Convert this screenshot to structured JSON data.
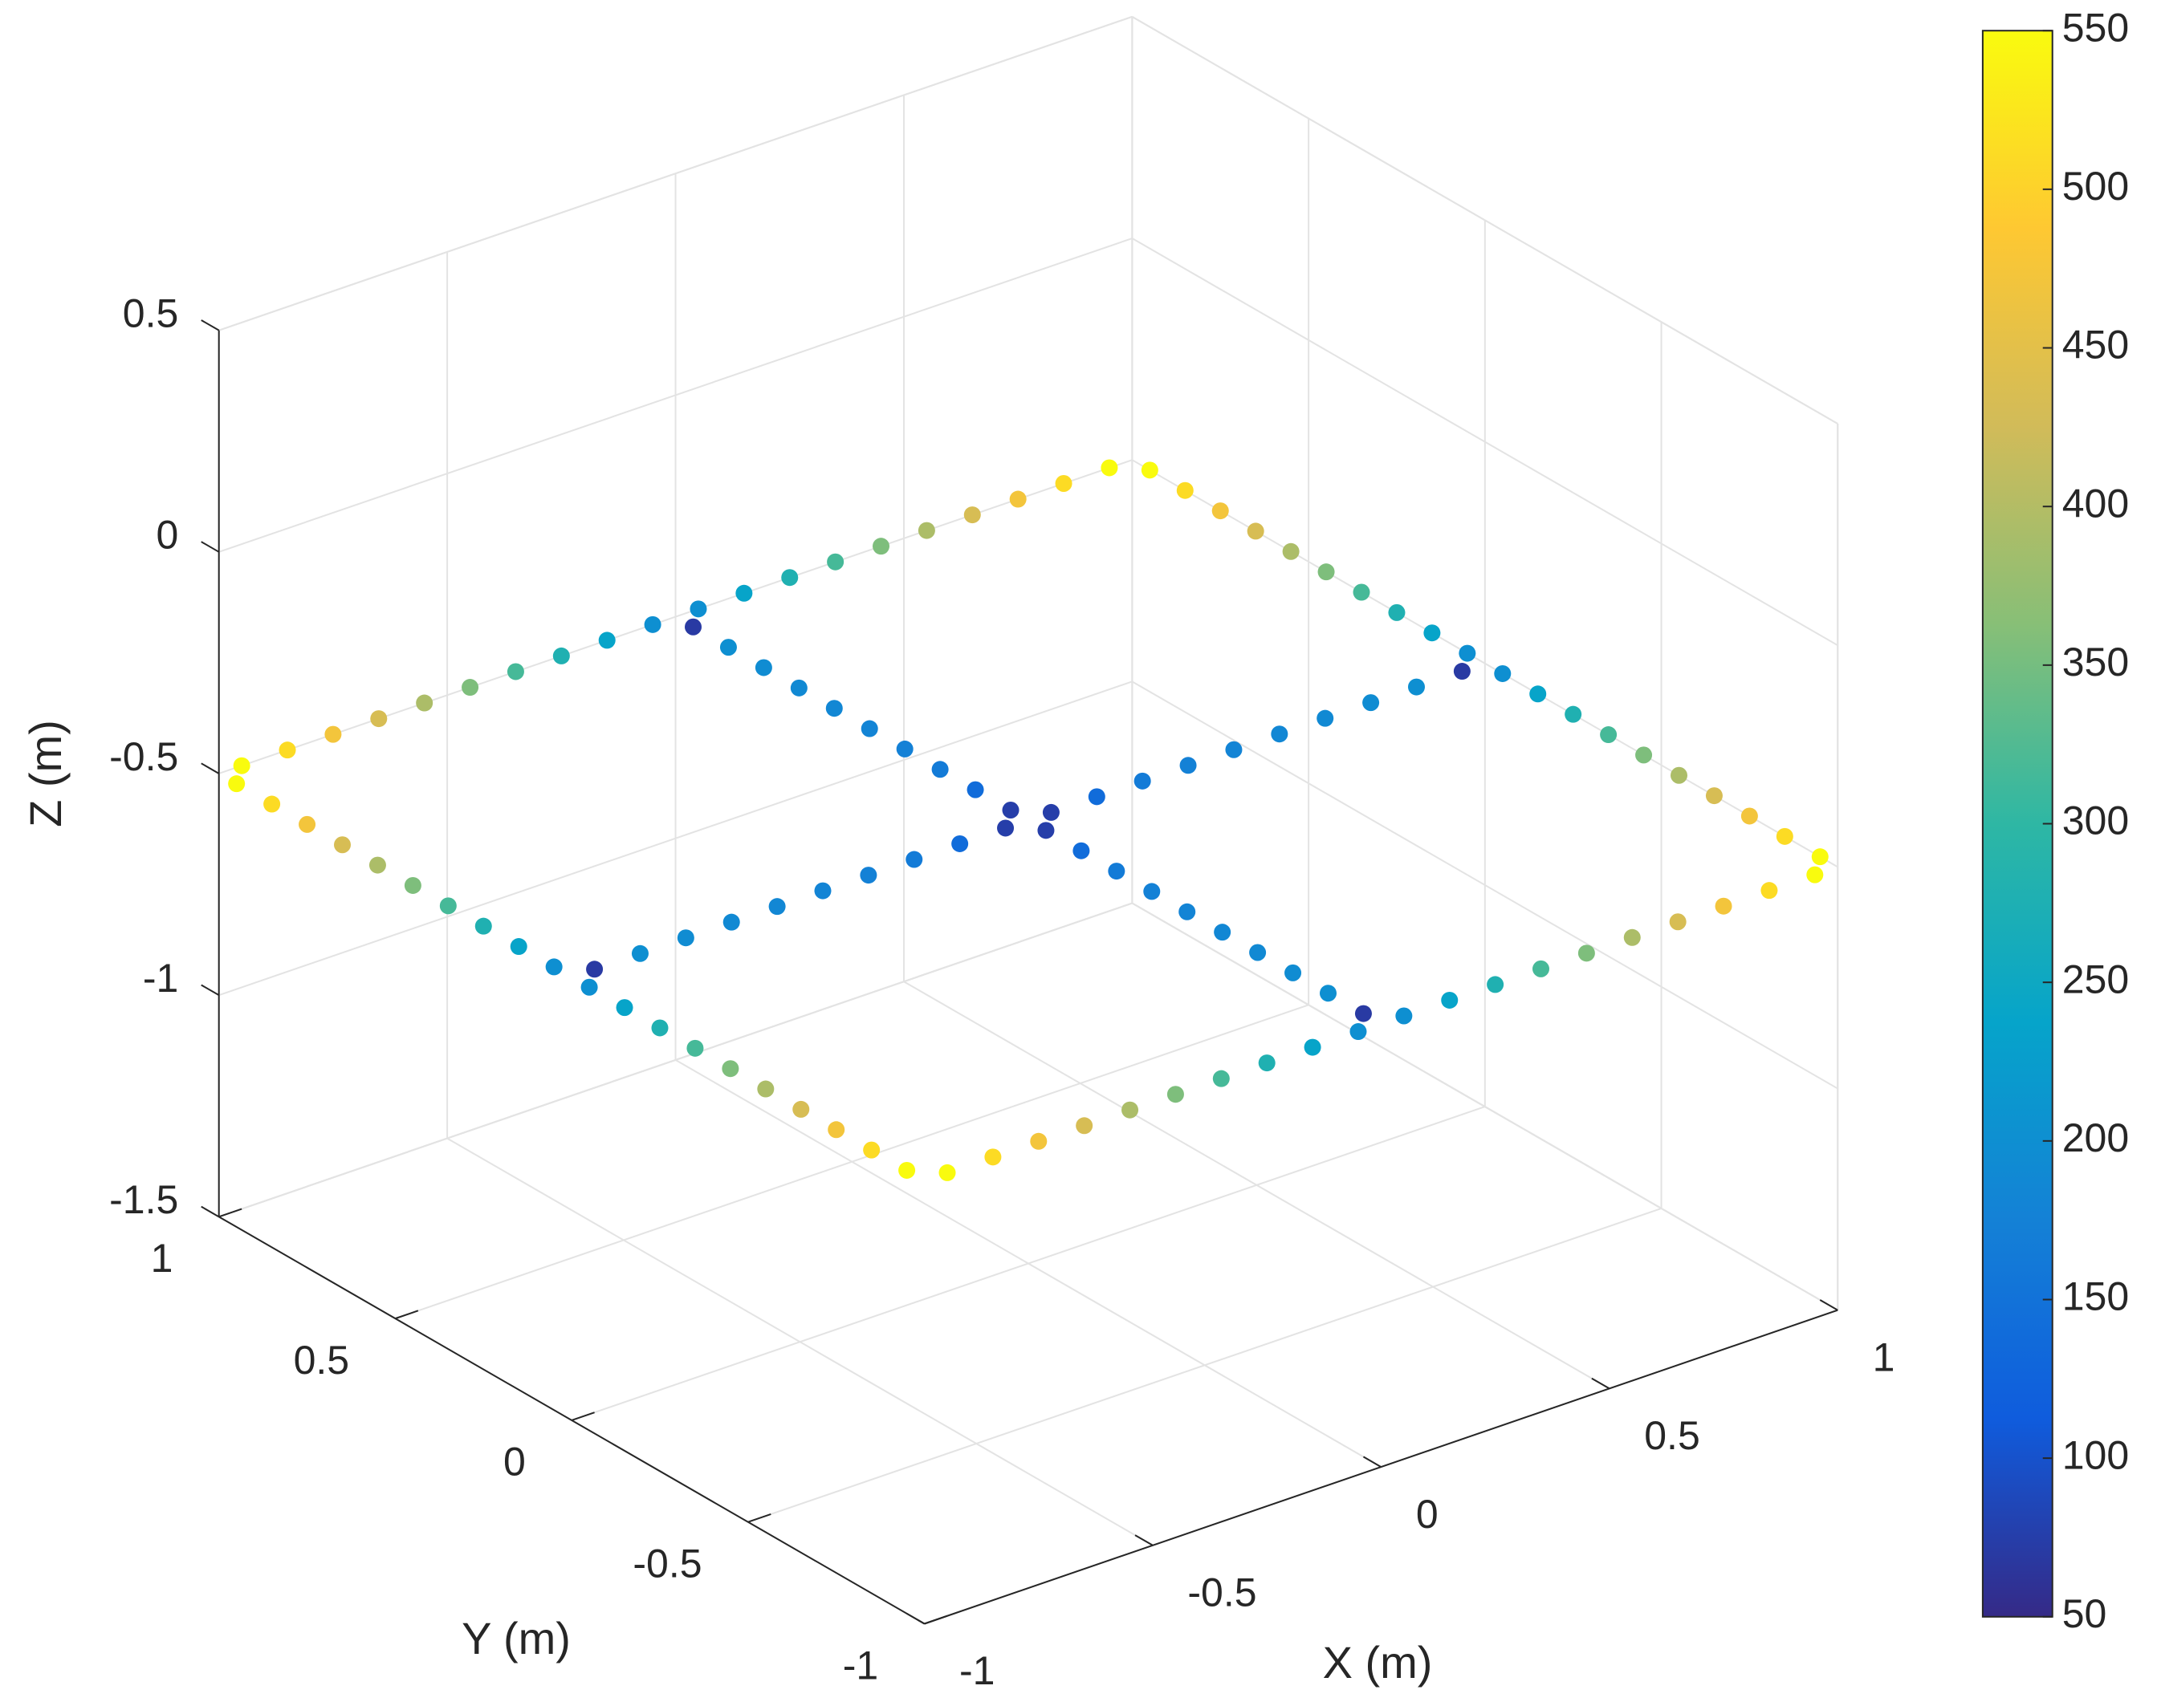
{
  "chart_data": {
    "type": "scatter3d",
    "xlabel": "X (m)",
    "ylabel": "Y (m)",
    "zlabel": "Z (m)",
    "xlim": [
      -1,
      1
    ],
    "ylim": [
      -1,
      1
    ],
    "zlim": [
      -1.5,
      0.5
    ],
    "xticks": [
      -1,
      -0.5,
      0,
      0.5,
      1
    ],
    "yticks": [
      -1,
      -0.5,
      0,
      0.5,
      1
    ],
    "zticks": [
      -1.5,
      -1,
      -0.5,
      0,
      0.5
    ],
    "grid": true,
    "clim": [
      50,
      550
    ],
    "cticks": [
      50,
      100,
      150,
      200,
      250,
      300,
      350,
      400,
      450,
      500,
      550
    ],
    "colormap": [
      "#352A87",
      "#0F5CDD",
      "#1481D6",
      "#06A4CA",
      "#2EB7A4",
      "#87BF77",
      "#D1BB59",
      "#FEC832",
      "#F9FB0E"
    ],
    "x": [
      -0.95,
      -0.85,
      -0.75,
      -0.65,
      -0.55,
      -0.45,
      -0.35,
      -0.25,
      -0.15,
      -0.05,
      0.05,
      0.15,
      0.25,
      0.35,
      0.45,
      0.55,
      0.65,
      0.75,
      0.85,
      0.95,
      1,
      1,
      1,
      1,
      1,
      1,
      1,
      1,
      1,
      1,
      1,
      1,
      1,
      1,
      1,
      1,
      1,
      1,
      1,
      1,
      -0.95,
      -0.85,
      -0.75,
      -0.65,
      -0.55,
      -0.45,
      -0.35,
      -0.25,
      -0.15,
      -0.05,
      0.05,
      0.15,
      0.25,
      0.35,
      0.45,
      0.55,
      0.65,
      0.75,
      0.85,
      0.95,
      -1,
      -1,
      -1,
      -1,
      -1,
      -1,
      -1,
      -1,
      -1,
      -1,
      -1,
      -1,
      -1,
      -1,
      -1,
      -1,
      -1,
      -1,
      -1,
      -1,
      0,
      0,
      0,
      0,
      0,
      0,
      0,
      0,
      0,
      0,
      0,
      0,
      0,
      0,
      0,
      0,
      0,
      0,
      0,
      0,
      -0.95,
      -0.85,
      -0.75,
      -0.65,
      -0.55,
      -0.45,
      -0.35,
      -0.25,
      -0.15,
      -0.05,
      0.05,
      0.15,
      0.25,
      0.35,
      0.45,
      0.55,
      0.65,
      0.75,
      0.85,
      0.95
    ],
    "y": [
      1,
      1,
      1,
      1,
      1,
      1,
      1,
      1,
      1,
      1,
      1,
      1,
      1,
      1,
      1,
      1,
      1,
      1,
      1,
      1,
      -0.95,
      -0.85,
      -0.75,
      -0.65,
      -0.55,
      -0.45,
      -0.35,
      -0.25,
      -0.15,
      -0.05,
      0.05,
      0.15,
      0.25,
      0.35,
      0.45,
      0.55,
      0.65,
      0.75,
      0.85,
      0.95,
      -1,
      -1,
      -1,
      -1,
      -1,
      -1,
      -1,
      -1,
      -1,
      -1,
      -1,
      -1,
      -1,
      -1,
      -1,
      -1,
      -1,
      -1,
      -1,
      -1,
      -0.95,
      -0.85,
      -0.75,
      -0.65,
      -0.55,
      -0.45,
      -0.35,
      -0.25,
      -0.15,
      -0.05,
      0.05,
      0.15,
      0.25,
      0.35,
      0.45,
      0.55,
      0.65,
      0.75,
      0.85,
      0.95,
      -0.95,
      -0.85,
      -0.75,
      -0.65,
      -0.55,
      -0.45,
      -0.35,
      -0.25,
      -0.15,
      -0.05,
      0.05,
      0.15,
      0.25,
      0.35,
      0.45,
      0.55,
      0.65,
      0.75,
      0.85,
      0.95,
      0,
      0,
      0,
      0,
      0,
      0,
      0,
      0,
      0,
      0,
      0,
      0,
      0,
      0,
      0,
      0,
      0,
      0,
      0,
      0
    ],
    "z": [
      -0.5,
      -0.5,
      -0.5,
      -0.5,
      -0.5,
      -0.5,
      -0.5,
      -0.5,
      -0.5,
      -0.5,
      -0.5,
      -0.5,
      -0.5,
      -0.5,
      -0.5,
      -0.5,
      -0.5,
      -0.5,
      -0.5,
      -0.5,
      -0.5,
      -0.5,
      -0.5,
      -0.5,
      -0.5,
      -0.5,
      -0.5,
      -0.5,
      -0.5,
      -0.5,
      -0.5,
      -0.5,
      -0.5,
      -0.5,
      -0.5,
      -0.5,
      -0.5,
      -0.5,
      -0.5,
      -0.5,
      -0.5,
      -0.5,
      -0.5,
      -0.5,
      -0.5,
      -0.5,
      -0.5,
      -0.5,
      -0.5,
      -0.5,
      -0.5,
      -0.5,
      -0.5,
      -0.5,
      -0.5,
      -0.5,
      -0.5,
      -0.5,
      -0.5,
      -0.5,
      -0.5,
      -0.5,
      -0.5,
      -0.5,
      -0.5,
      -0.5,
      -0.5,
      -0.5,
      -0.5,
      -0.5,
      -0.5,
      -0.5,
      -0.5,
      -0.5,
      -0.5,
      -0.5,
      -0.5,
      -0.5,
      -0.5,
      -0.5,
      -0.5,
      -0.5,
      -0.5,
      -0.5,
      -0.5,
      -0.5,
      -0.5,
      -0.5,
      -0.5,
      -0.5,
      -0.5,
      -0.5,
      -0.5,
      -0.5,
      -0.5,
      -0.5,
      -0.5,
      -0.5,
      -0.5,
      -0.5,
      -0.5,
      -0.5,
      -0.5,
      -0.5,
      -0.5,
      -0.5,
      -0.5,
      -0.5,
      -0.5,
      -0.5,
      -0.5,
      -0.5,
      -0.5,
      -0.5,
      -0.5,
      -0.5,
      -0.5,
      -0.5,
      -0.5,
      -0.5
    ],
    "c": [
      550,
      511,
      472,
      433,
      394,
      356,
      317,
      278,
      239,
      200,
      200,
      239,
      278,
      317,
      356,
      394,
      433,
      472,
      511,
      550,
      550,
      511,
      472,
      433,
      394,
      356,
      317,
      278,
      239,
      200,
      200,
      239,
      278,
      317,
      356,
      394,
      433,
      472,
      511,
      550,
      550,
      511,
      472,
      433,
      394,
      356,
      317,
      278,
      239,
      200,
      200,
      239,
      278,
      317,
      356,
      394,
      433,
      472,
      511,
      550,
      550,
      511,
      472,
      433,
      394,
      356,
      317,
      278,
      239,
      200,
      200,
      239,
      278,
      317,
      356,
      394,
      433,
      472,
      511,
      550,
      70,
      200,
      195,
      190,
      185,
      180,
      175,
      165,
      140,
      75,
      75,
      140,
      165,
      175,
      180,
      185,
      190,
      195,
      200,
      70,
      70,
      200,
      195,
      190,
      185,
      180,
      175,
      165,
      140,
      75,
      75,
      140,
      165,
      175,
      180,
      185,
      190,
      195,
      200,
      70
    ]
  }
}
